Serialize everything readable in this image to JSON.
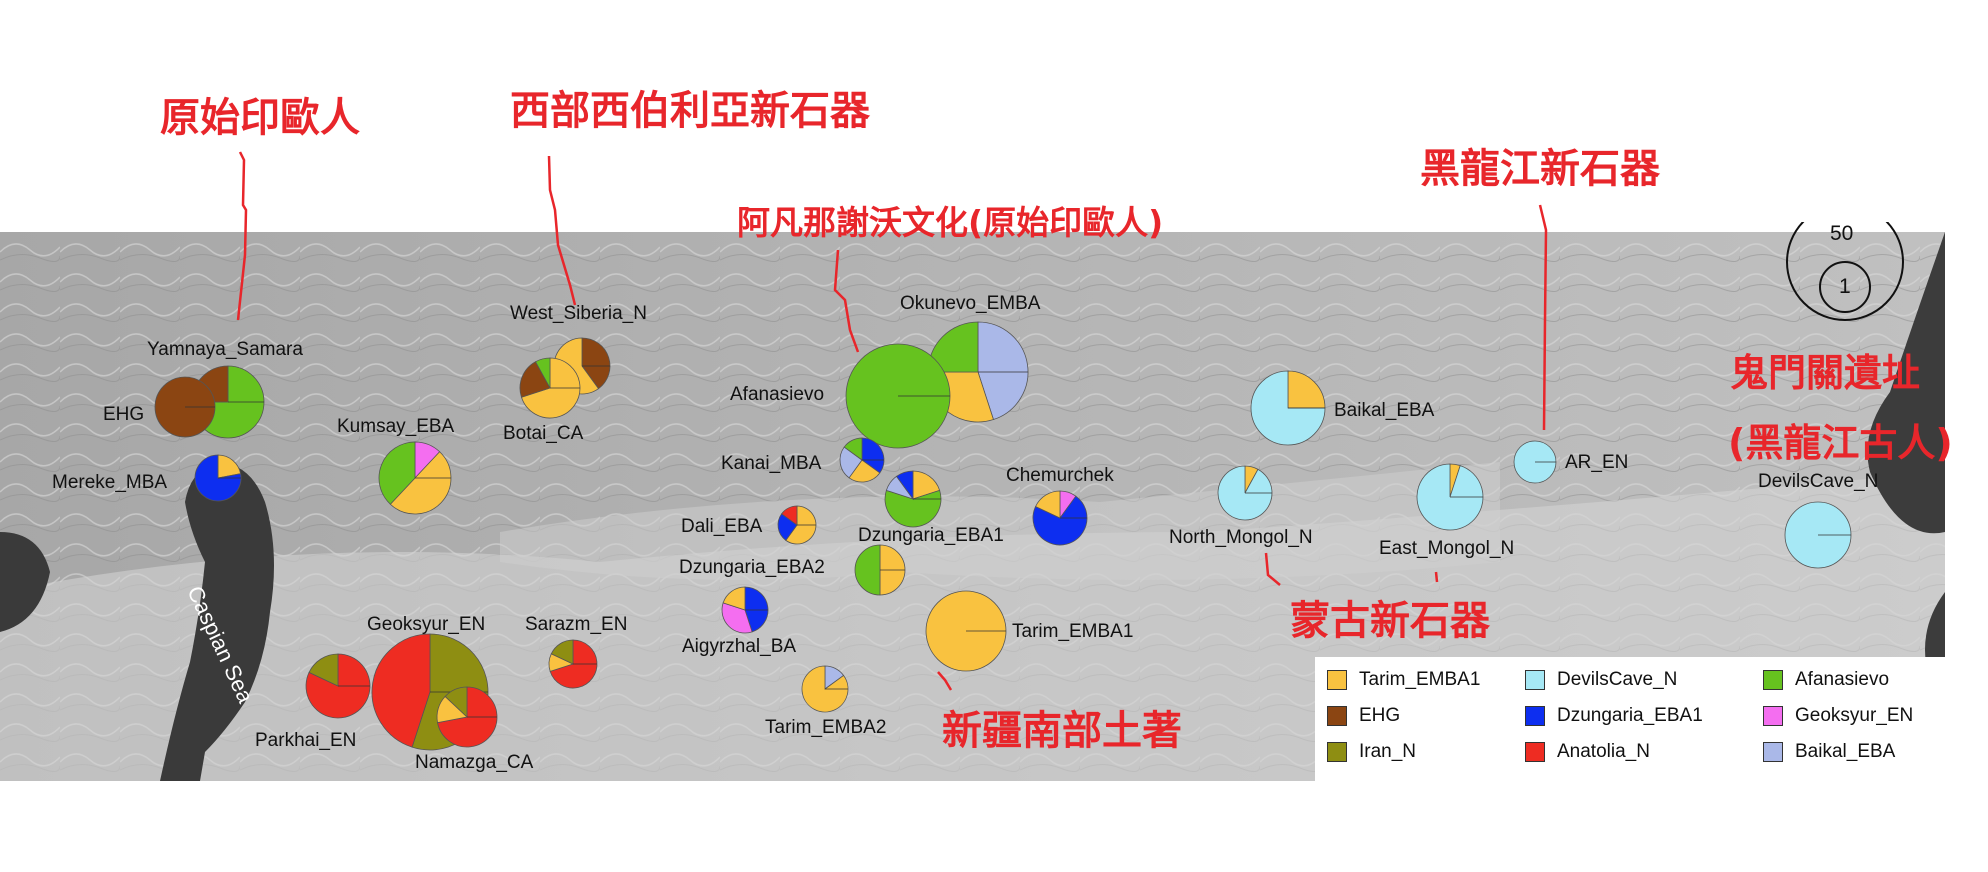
{
  "title_annotations": {
    "proto_ie": "原始印歐人",
    "west_siberia": "西部西伯利亞新石器",
    "afanasievo_culture": "阿凡那謝沃文化(原始印歐人)",
    "amur_neolithic": "黑龍江新石器",
    "devils_gate_1": "鬼門關遺址",
    "devils_gate_2": "(黑龍江古人)",
    "mongol_neolithic": "蒙古新石器",
    "south_xinjiang": "新疆南部土著"
  },
  "scale": {
    "big": "50",
    "small": "1"
  },
  "sea_label": "Caspian Sea",
  "colors": {
    "Tarim_EMBA1": "#f9c240",
    "EHG": "#8b4512",
    "Iran_N": "#8e8e12",
    "DevilsCave_N": "#a6e8f5",
    "Dzungaria_EBA1": "#0d2ef0",
    "Anatolia_N": "#ee2c22",
    "Afanasievo": "#66c21f",
    "Geoksyur_EN": "#f46ef0",
    "Baikal_EBA": "#aab8e8"
  },
  "legend": [
    {
      "label": "Tarim_EMBA1",
      "color": "#f9c240"
    },
    {
      "label": "EHG",
      "color": "#8b4512"
    },
    {
      "label": "Iran_N",
      "color": "#8e8e12"
    },
    {
      "label": "DevilsCave_N",
      "color": "#a6e8f5"
    },
    {
      "label": "Dzungaria_EBA1",
      "color": "#0d2ef0"
    },
    {
      "label": "Anatolia_N",
      "color": "#ee2c22"
    },
    {
      "label": "Afanasievo",
      "color": "#66c21f"
    },
    {
      "label": "Geoksyur_EN",
      "color": "#f46ef0"
    },
    {
      "label": "Baikal_EBA",
      "color": "#aab8e8"
    }
  ],
  "sites": [
    {
      "label": "Yamnaya_Samara",
      "parts": [
        [
          "Afanasievo",
          0.75
        ],
        [
          "EHG",
          0.25
        ]
      ]
    },
    {
      "label": "EHG",
      "parts": [
        [
          "EHG",
          1.0
        ]
      ]
    },
    {
      "label": "Mereke_MBA",
      "parts": [
        [
          "Tarim_EMBA1",
          0.22
        ],
        [
          "Dzungaria_EBA1",
          0.78
        ]
      ]
    },
    {
      "label": "Kumsay_EBA",
      "parts": [
        [
          "Geoksyur_EN",
          0.12
        ],
        [
          "Tarim_EMBA1",
          0.5
        ],
        [
          "Afanasievo",
          0.38
        ]
      ]
    },
    {
      "label": "West_Siberia_N",
      "parts": [
        [
          "EHG",
          0.4
        ],
        [
          "Tarim_EMBA1",
          0.6
        ]
      ]
    },
    {
      "label": "Botai_CA",
      "parts": [
        [
          "Tarim_EMBA1",
          0.7
        ],
        [
          "EHG",
          0.22
        ],
        [
          "Afanasievo",
          0.08
        ]
      ]
    },
    {
      "label": "Okunevo_EMBA",
      "parts": [
        [
          "Baikal_EBA",
          0.45
        ],
        [
          "Tarim_EMBA1",
          0.3
        ],
        [
          "Afanasievo",
          0.25
        ]
      ]
    },
    {
      "label": "Afanasievo",
      "parts": [
        [
          "Afanasievo",
          1.0
        ]
      ]
    },
    {
      "label": "Kanai_MBA",
      "parts": [
        [
          "Dzungaria_EBA1",
          0.35
        ],
        [
          "Tarim_EMBA1",
          0.25
        ],
        [
          "Baikal_EBA",
          0.25
        ],
        [
          "Afanasievo",
          0.15
        ]
      ]
    },
    {
      "label": "Chemurchek",
      "parts": [
        [
          "Geoksyur_EN",
          0.1
        ],
        [
          "Dzungaria_EBA1",
          0.72
        ],
        [
          "Tarim_EMBA1",
          0.18
        ]
      ]
    },
    {
      "label": "Dali_EBA",
      "parts": [
        [
          "Tarim_EMBA1",
          0.6
        ],
        [
          "Dzungaria_EBA1",
          0.25
        ],
        [
          "Anatolia_N",
          0.15
        ]
      ]
    },
    {
      "label": "Dzungaria_EBA1",
      "parts": [
        [
          "Tarim_EMBA1",
          0.2
        ],
        [
          "Afanasievo",
          0.6
        ],
        [
          "Baikal_EBA",
          0.1
        ],
        [
          "Dzungaria_EBA1",
          0.1
        ]
      ]
    },
    {
      "label": "Dzungaria_EBA2",
      "parts": [
        [
          "Tarim_EMBA1",
          0.5
        ],
        [
          "Afanasievo",
          0.5
        ]
      ]
    },
    {
      "label": "Aigyrzhal_BA",
      "parts": [
        [
          "Dzungaria_EBA1",
          0.45
        ],
        [
          "Geoksyur_EN",
          0.35
        ],
        [
          "Tarim_EMBA1",
          0.2
        ]
      ]
    },
    {
      "label": "Tarim_EMBA1",
      "parts": [
        [
          "Tarim_EMBA1",
          1.0
        ]
      ]
    },
    {
      "label": "Tarim_EMBA2",
      "parts": [
        [
          "Baikal_EBA",
          0.15
        ],
        [
          "Tarim_EMBA1",
          0.85
        ]
      ]
    },
    {
      "label": "Baikal_EBA",
      "parts": [
        [
          "Tarim_EMBA1",
          0.25
        ],
        [
          "DevilsCave_N",
          0.75
        ]
      ]
    },
    {
      "label": "North_Mongol_N",
      "parts": [
        [
          "Tarim_EMBA1",
          0.08
        ],
        [
          "DevilsCave_N",
          0.92
        ]
      ]
    },
    {
      "label": "East_Mongol_N",
      "parts": [
        [
          "Tarim_EMBA1",
          0.05
        ],
        [
          "DevilsCave_N",
          0.95
        ]
      ]
    },
    {
      "label": "AR_EN",
      "parts": [
        [
          "DevilsCave_N",
          1.0
        ]
      ]
    },
    {
      "label": "DevilsCave_N",
      "parts": [
        [
          "DevilsCave_N",
          1.0
        ]
      ]
    },
    {
      "label": "Geoksyur_EN",
      "parts": [
        [
          "Iran_N",
          0.55
        ],
        [
          "Anatolia_N",
          0.45
        ]
      ]
    },
    {
      "label": "Sarazm_EN",
      "parts": [
        [
          "Anatolia_N",
          0.7
        ],
        [
          "Tarim_EMBA1",
          0.12
        ],
        [
          "Iran_N",
          0.18
        ]
      ]
    },
    {
      "label": "Parkhai_EN",
      "parts": [
        [
          "Anatolia_N",
          0.82
        ],
        [
          "Iran_N",
          0.18
        ]
      ]
    },
    {
      "label": "Namazga_CA",
      "parts": [
        [
          "Anatolia_N",
          0.72
        ],
        [
          "Tarim_EMBA1",
          0.15
        ],
        [
          "Iran_N",
          0.13
        ]
      ]
    }
  ]
}
